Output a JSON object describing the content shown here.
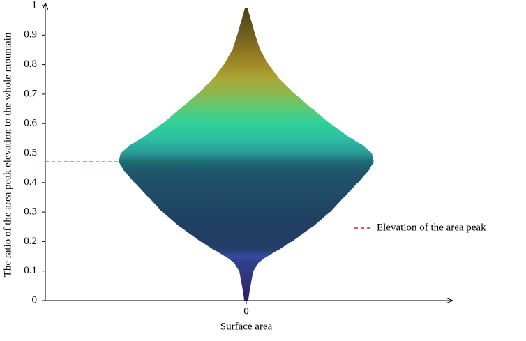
{
  "chart_data": {
    "type": "violin",
    "ylabel": "The ratio of the area peak elevation to the whole mountain",
    "xlabel": "Surface  area",
    "y": [
      0,
      0.02,
      0.05,
      0.1,
      0.13,
      0.15,
      0.17,
      0.2,
      0.25,
      0.3,
      0.35,
      0.4,
      0.44,
      0.47,
      0.5,
      0.53,
      0.55,
      0.6,
      0.65,
      0.7,
      0.75,
      0.8,
      0.85,
      0.9,
      0.95,
      0.99
    ],
    "values": [
      0.01,
      0.014,
      0.021,
      0.035,
      0.063,
      0.104,
      0.156,
      0.226,
      0.33,
      0.417,
      0.486,
      0.556,
      0.608,
      0.635,
      0.625,
      0.573,
      0.521,
      0.417,
      0.33,
      0.243,
      0.167,
      0.111,
      0.069,
      0.045,
      0.024,
      0.007
    ],
    "colors": [
      "#2b1f5e",
      "#2d2468",
      "#2f2c74",
      "#303a86",
      "#2d3f86",
      "#3a4aa8",
      "#24406e",
      "#223e64",
      "#203f62",
      "#1f4462",
      "#1f4a66",
      "#1f5068",
      "#1f586c",
      "#1e6a72",
      "#2a9a98",
      "#2cb0a0",
      "#2bc0a0",
      "#2fd09a",
      "#5acc78",
      "#8ab850",
      "#a8a838",
      "#a08a28",
      "#8a7422",
      "#706020",
      "#5a4e1c",
      "#4a4018"
    ],
    "xlim": [
      -1,
      1
    ],
    "xticks": [
      0
    ],
    "ylim": [
      0,
      1
    ],
    "yticks": [
      0,
      0.1,
      0.2,
      0.3,
      0.4,
      0.5,
      0.6,
      0.7,
      0.8,
      0.9,
      1
    ],
    "peak": {
      "value": 0.47,
      "label": "Elevation of the area peak",
      "color": "#e02020"
    }
  }
}
